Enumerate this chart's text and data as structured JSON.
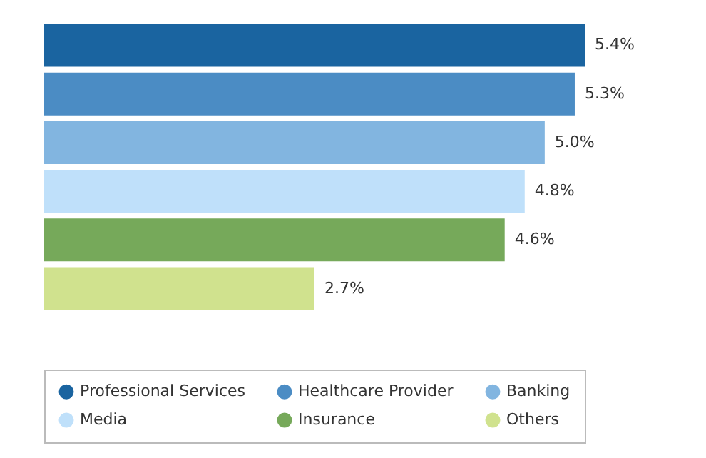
{
  "chart_data": {
    "type": "bar",
    "orientation": "horizontal",
    "categories": [
      null,
      null,
      null,
      null,
      null,
      null
    ],
    "series": [
      {
        "name": "Professional Services",
        "color": "#1a64a0",
        "values": [
          5.4,
          null,
          null,
          null,
          null,
          null
        ],
        "value_labels": [
          "5.4%",
          null,
          null,
          null,
          null,
          null
        ]
      },
      {
        "name": "Healthcare Provider",
        "color": "#4b8cc4",
        "values": [
          null,
          5.3,
          null,
          null,
          null,
          null
        ],
        "value_labels": [
          null,
          "5.3%",
          null,
          null,
          null,
          null
        ]
      },
      {
        "name": "Banking",
        "color": "#82b5e0",
        "values": [
          null,
          null,
          5.0,
          null,
          null,
          null
        ],
        "value_labels": [
          null,
          null,
          "5.0%",
          null,
          null,
          null
        ]
      },
      {
        "name": "Media",
        "color": "#bfe0fa",
        "values": [
          null,
          null,
          null,
          4.8,
          null,
          null
        ],
        "value_labels": [
          null,
          null,
          null,
          "4.8%",
          null,
          null
        ]
      },
      {
        "name": "Insurance",
        "color": "#76a95a",
        "values": [
          null,
          null,
          null,
          null,
          4.6,
          null
        ],
        "value_labels": [
          null,
          null,
          null,
          null,
          "4.6%",
          null
        ]
      },
      {
        "name": "Others",
        "color": "#d0e28e",
        "values": [
          null,
          null,
          null,
          null,
          null,
          2.7
        ],
        "value_labels": [
          null,
          null,
          null,
          null,
          null,
          "2.7%"
        ]
      }
    ],
    "stacked": true,
    "xlim": [
      0,
      5.4
    ],
    "legend": "bottom",
    "tick_labels": false
  }
}
